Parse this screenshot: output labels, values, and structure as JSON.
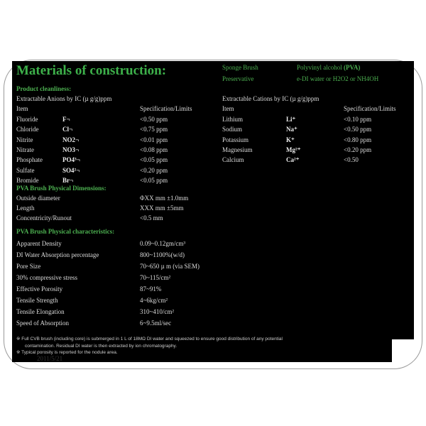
{
  "title": "Materials of construction:",
  "material": [
    {
      "label": "Sponge Brush",
      "value": "Polyvinyl alcohol",
      "value_bold": "(PVA)"
    },
    {
      "label": "Preservative",
      "value": "e-DI water or H2O2 or NH4OH"
    }
  ],
  "cleanliness": {
    "heading": "Product cleanliness:",
    "anions": {
      "caption": "Extractable Anions by IC (µ g/g)ppm",
      "col_item": "Item",
      "col_spec": "Specification/Limits",
      "rows": [
        [
          "Fluoride",
          "F¬",
          "<0.50 ppm"
        ],
        [
          "Chloride",
          "Cl¬",
          "<0.75 ppm"
        ],
        [
          "Nitrite",
          "NO2¬",
          "<0.01 ppm"
        ],
        [
          "Nitrate",
          "NO3¬",
          "<0.08 ppm"
        ],
        [
          "Phosphate",
          "PO4³¬",
          "<0.05 ppm"
        ],
        [
          "Sulfate",
          "SO4²¬",
          "<0.20 ppm"
        ],
        [
          "Bromide",
          "Br¬",
          "<0.05 ppm"
        ]
      ]
    },
    "cations": {
      "caption": "Extractable Cations by IC (µ g/g)ppm",
      "col_item": "Item",
      "col_spec": "Specification/Limits",
      "rows": [
        [
          "Lithium",
          "Li⁺",
          "<0.10 ppm"
        ],
        [
          "Sodium",
          "Na⁺",
          "<0.50 ppm"
        ],
        [
          "Potassium",
          "K⁺",
          "<0.80 ppm"
        ],
        [
          "Magnesium",
          "Mg²⁺",
          "<0.20 ppm"
        ],
        [
          "Calcium",
          "Ca²⁺",
          "<0.50"
        ]
      ]
    }
  },
  "dimensions": {
    "heading": "PVA Brush Physical Dimensions:",
    "rows": [
      [
        "Outside diameter",
        "ΦXX mm ±1.0mm"
      ],
      [
        "Length",
        "XXX  mm ±5mm"
      ],
      [
        "Concentricity/Runout",
        "<0.5    mm"
      ]
    ]
  },
  "characteristics": {
    "heading": "PVA Brush Physical characteristics:",
    "rows": [
      [
        "Apparent Density",
        "0.09~0.12gm/cm³"
      ],
      [
        "DI Water Absorption percentage",
        "800~1100%(w/d)"
      ],
      [
        "Pore Size",
        "70~650 µ m (via SEM)"
      ],
      [
        "30% compressive stress",
        "70~115/cm²"
      ],
      [
        "Effective Porosity",
        "87~91%"
      ],
      [
        "Tensile Strength",
        "4~6kg/cm²"
      ],
      [
        "Tensile Elongation",
        "310~410/cm²"
      ],
      [
        "Speed of Absorption",
        "6~9.5ml/sec"
      ]
    ]
  },
  "footnotes": [
    "※ Full CVB brush (including core) is submerged in 1 L of 18MΩ DI water and squeezed to ensure good distribution of any potential",
    "contamination. Residual DI water is then extracted by ion chromatography.",
    "※ Typical porosity is reported for the nodule area."
  ],
  "date": "2011/5/21"
}
